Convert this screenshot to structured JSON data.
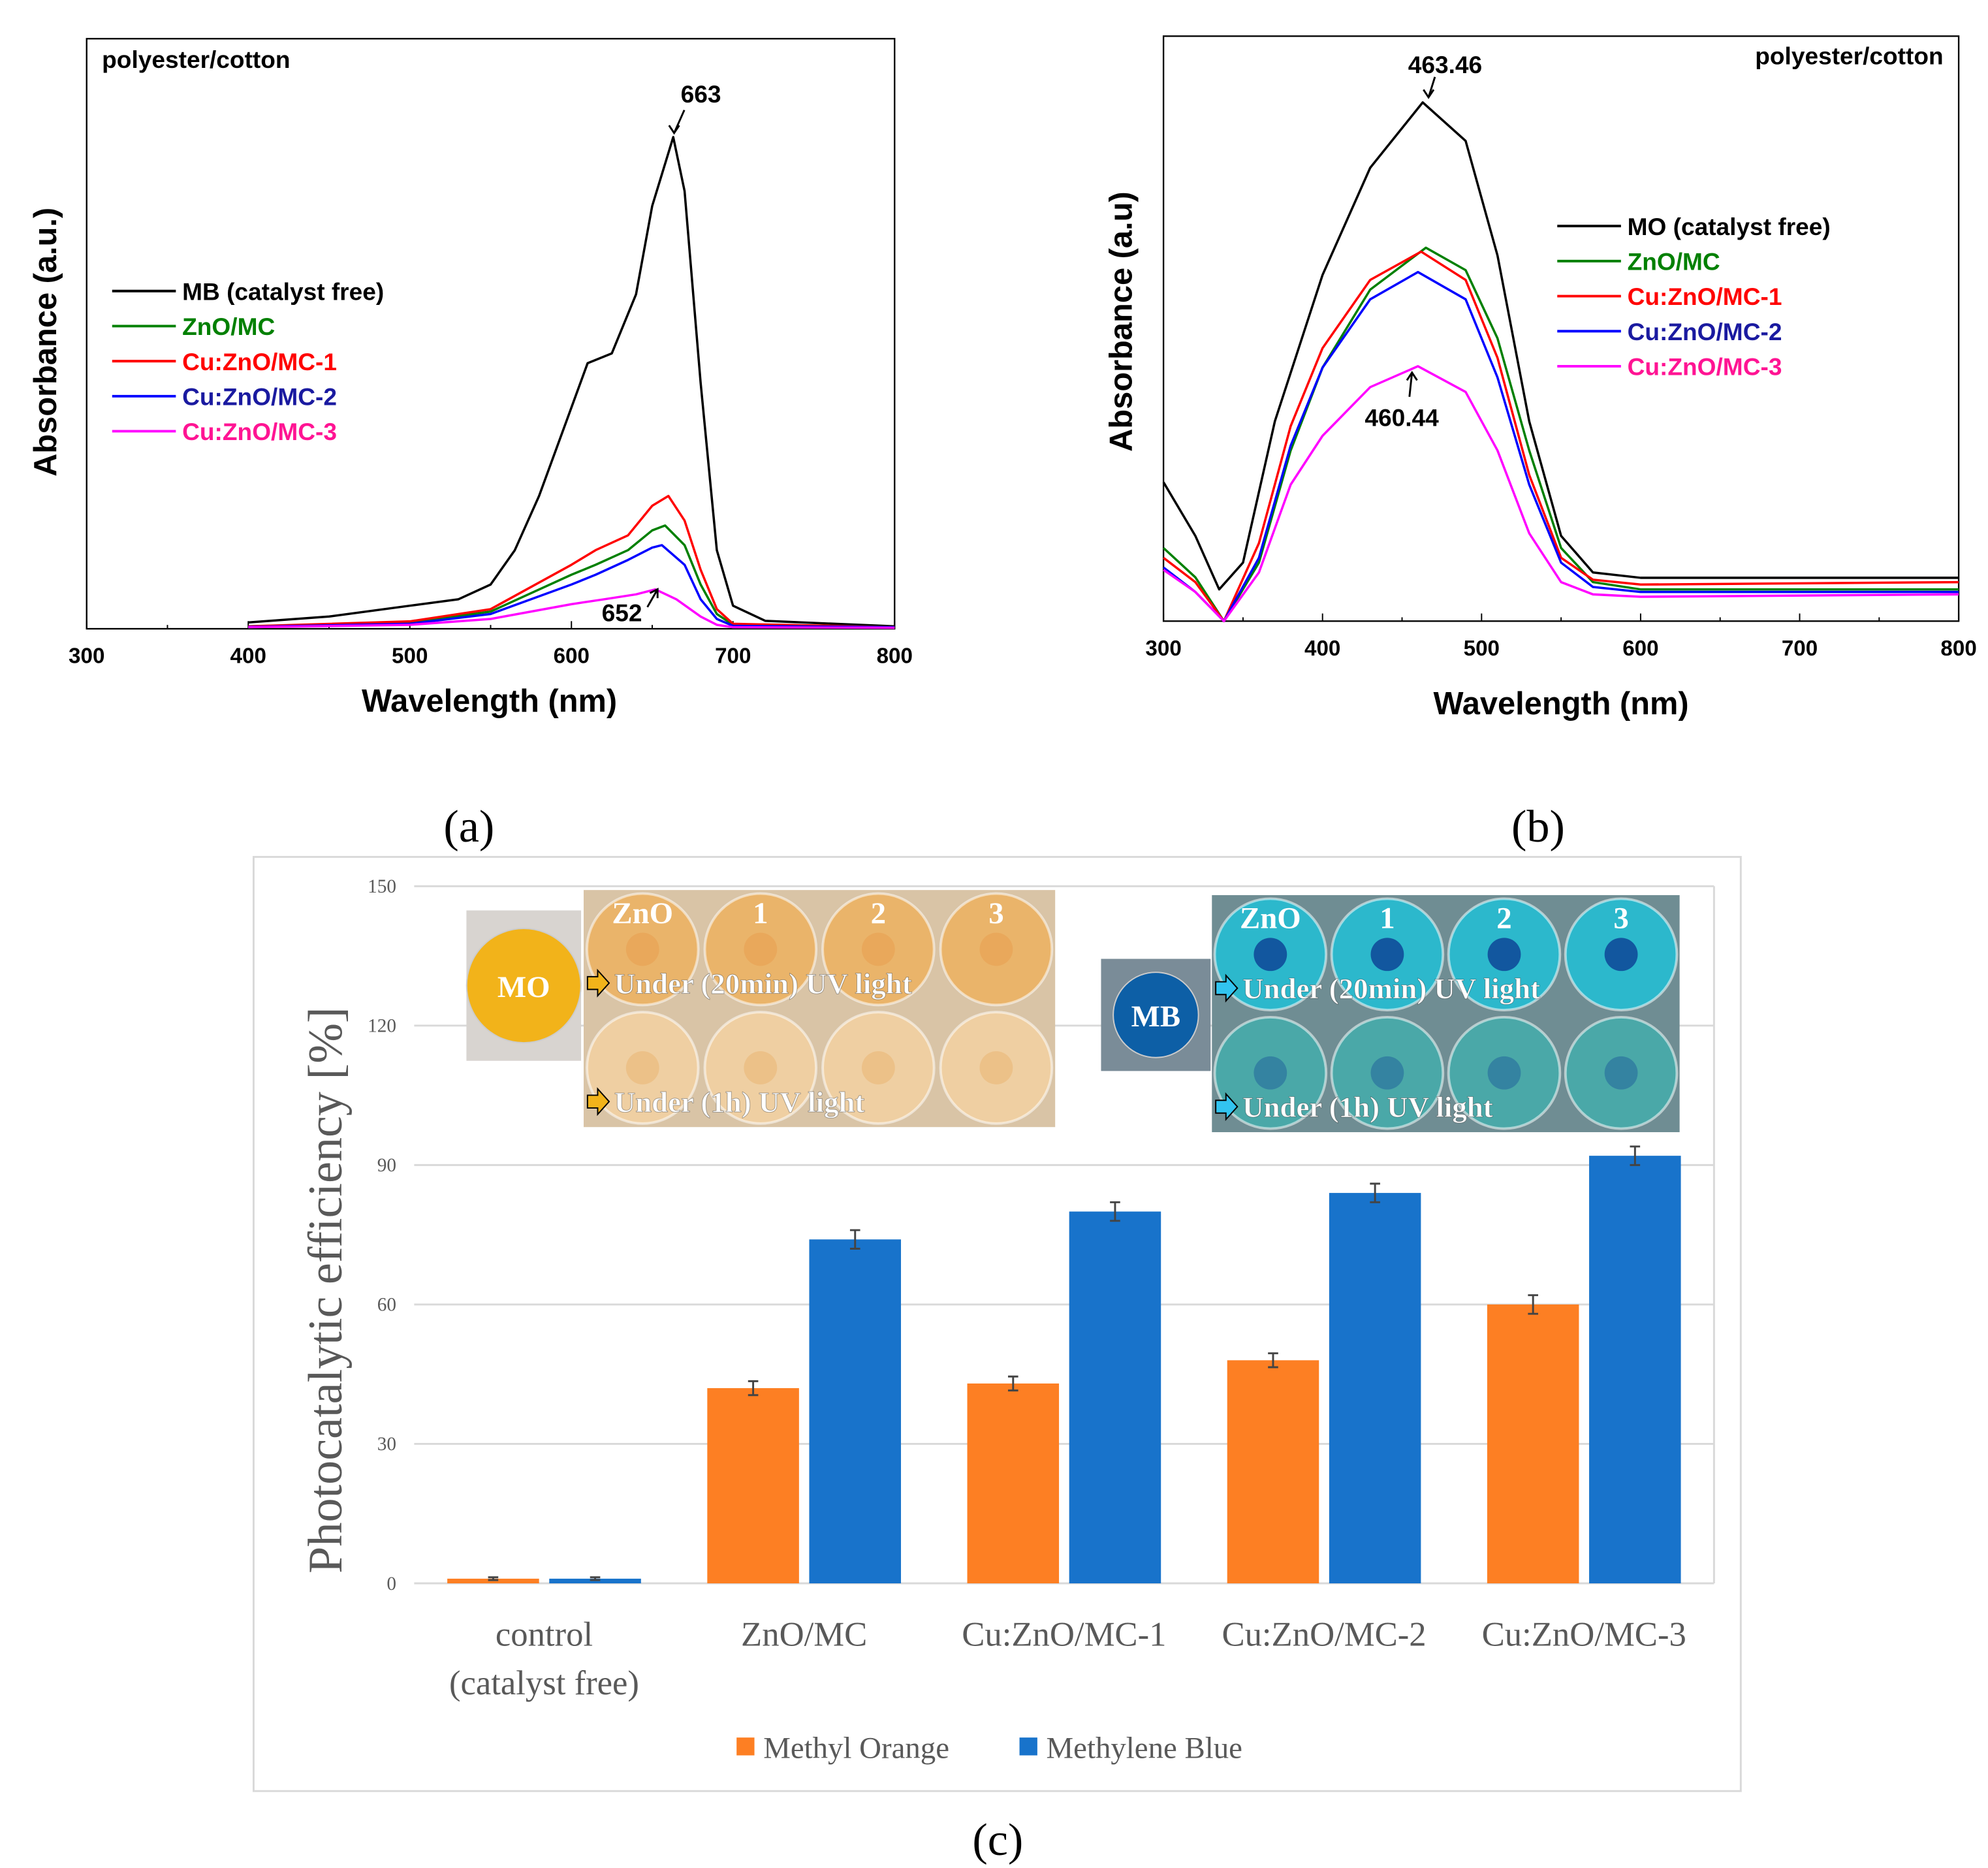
{
  "chart_data": [
    {
      "type": "line",
      "panel_label": "(a)",
      "annotation": "polyester/cotton",
      "xlabel": "Wavelength (nm)",
      "ylabel": "Absorbance (a.u.)",
      "xlim": [
        300,
        800
      ],
      "ylim": [
        0,
        1.2
      ],
      "x_ticks": [
        "300",
        "400",
        "500",
        "600",
        "700",
        "800"
      ],
      "y_ticks_shown": false,
      "legend_placement": "left",
      "peak_labels": [
        "663",
        "652"
      ],
      "series": [
        {
          "name": "MB (catalyst free)",
          "color": "#000000",
          "points": [
            [
              400,
              0.013
            ],
            [
              450,
              0.025
            ],
            [
              500,
              0.047
            ],
            [
              530,
              0.06
            ],
            [
              550,
              0.09
            ],
            [
              565,
              0.16
            ],
            [
              580,
              0.27
            ],
            [
              600,
              0.45
            ],
            [
              610,
              0.54
            ],
            [
              625,
              0.56
            ],
            [
              640,
              0.68
            ],
            [
              650,
              0.86
            ],
            [
              663,
              1.0
            ],
            [
              670,
              0.89
            ],
            [
              680,
              0.5
            ],
            [
              690,
              0.16
            ],
            [
              700,
              0.047
            ],
            [
              720,
              0.016
            ],
            [
              800,
              0.005
            ]
          ]
        },
        {
          "name": "ZnO/MC",
          "color": "#008000",
          "points": [
            [
              400,
              0.005
            ],
            [
              500,
              0.012
            ],
            [
              550,
              0.035
            ],
            [
              600,
              0.11
            ],
            [
              615,
              0.13
            ],
            [
              635,
              0.16
            ],
            [
              650,
              0.2
            ],
            [
              658,
              0.21
            ],
            [
              670,
              0.17
            ],
            [
              680,
              0.09
            ],
            [
              690,
              0.03
            ],
            [
              700,
              0.008
            ],
            [
              800,
              0.003
            ]
          ]
        },
        {
          "name": "Cu:ZnO/MC-1",
          "color": "#ff0000",
          "points": [
            [
              400,
              0.005
            ],
            [
              500,
              0.015
            ],
            [
              550,
              0.04
            ],
            [
              600,
              0.13
            ],
            [
              615,
              0.16
            ],
            [
              635,
              0.19
            ],
            [
              650,
              0.25
            ],
            [
              660,
              0.27
            ],
            [
              670,
              0.22
            ],
            [
              680,
              0.12
            ],
            [
              690,
              0.04
            ],
            [
              700,
              0.01
            ],
            [
              800,
              0.003
            ]
          ]
        },
        {
          "name": "Cu:ZnO/MC-2",
          "color": "#0000ff",
          "points": [
            [
              400,
              0.004
            ],
            [
              500,
              0.01
            ],
            [
              550,
              0.03
            ],
            [
              600,
              0.09
            ],
            [
              615,
              0.11
            ],
            [
              635,
              0.14
            ],
            [
              650,
              0.165
            ],
            [
              656,
              0.17
            ],
            [
              670,
              0.13
            ],
            [
              680,
              0.06
            ],
            [
              690,
              0.02
            ],
            [
              700,
              0.006
            ],
            [
              800,
              0.003
            ]
          ]
        },
        {
          "name": "Cu:ZnO/MC-3",
          "color": "#ff00ff",
          "points": [
            [
              400,
              0.003
            ],
            [
              500,
              0.008
            ],
            [
              550,
              0.02
            ],
            [
              600,
              0.05
            ],
            [
              620,
              0.06
            ],
            [
              640,
              0.07
            ],
            [
              652,
              0.08
            ],
            [
              665,
              0.06
            ],
            [
              680,
              0.025
            ],
            [
              690,
              0.008
            ],
            [
              700,
              0.003
            ],
            [
              800,
              0.002
            ]
          ]
        }
      ]
    },
    {
      "type": "line",
      "panel_label": "(b)",
      "annotation": "polyester/cotton",
      "xlabel": "Wavelength (nm)",
      "ylabel": "Absorbance (a.u)",
      "xlim": [
        300,
        800
      ],
      "ylim": [
        0,
        1.2
      ],
      "x_ticks": [
        "300",
        "400",
        "500",
        "600",
        "700",
        "800"
      ],
      "y_ticks_shown": false,
      "legend_placement": "right",
      "peak_labels": [
        "463.46",
        "460.44"
      ],
      "series": [
        {
          "name": "MO (catalyst free)",
          "color": "#000000",
          "points": [
            [
              300,
              0.285
            ],
            [
              320,
              0.175
            ],
            [
              335,
              0.065
            ],
            [
              350,
              0.12
            ],
            [
              370,
              0.41
            ],
            [
              400,
              0.71
            ],
            [
              430,
              0.93
            ],
            [
              463,
              1.064
            ],
            [
              490,
              0.985
            ],
            [
              510,
              0.75
            ],
            [
              530,
              0.41
            ],
            [
              550,
              0.175
            ],
            [
              570,
              0.1
            ],
            [
              600,
              0.089
            ],
            [
              800,
              0.089
            ]
          ]
        },
        {
          "name": "ZnO/MC",
          "color": "#008000",
          "points": [
            [
              300,
              0.15
            ],
            [
              320,
              0.09
            ],
            [
              338,
              0.0
            ],
            [
              360,
              0.12
            ],
            [
              380,
              0.35
            ],
            [
              400,
              0.52
            ],
            [
              430,
              0.68
            ],
            [
              465,
              0.766
            ],
            [
              490,
              0.72
            ],
            [
              510,
              0.58
            ],
            [
              530,
              0.35
            ],
            [
              550,
              0.15
            ],
            [
              570,
              0.08
            ],
            [
              600,
              0.065
            ],
            [
              800,
              0.065
            ]
          ]
        },
        {
          "name": "Cu:ZnO/MC-1",
          "color": "#ff0000",
          "points": [
            [
              300,
              0.13
            ],
            [
              320,
              0.08
            ],
            [
              338,
              0.0
            ],
            [
              360,
              0.16
            ],
            [
              380,
              0.4
            ],
            [
              400,
              0.56
            ],
            [
              430,
              0.7
            ],
            [
              462,
              0.758
            ],
            [
              490,
              0.7
            ],
            [
              510,
              0.54
            ],
            [
              530,
              0.3
            ],
            [
              550,
              0.13
            ],
            [
              570,
              0.085
            ],
            [
              600,
              0.075
            ],
            [
              800,
              0.08
            ]
          ]
        },
        {
          "name": "Cu:ZnO/MC-2",
          "color": "#0000ff",
          "points": [
            [
              300,
              0.11
            ],
            [
              320,
              0.06
            ],
            [
              338,
              0.0
            ],
            [
              360,
              0.13
            ],
            [
              380,
              0.36
            ],
            [
              400,
              0.52
            ],
            [
              430,
              0.66
            ],
            [
              460,
              0.716
            ],
            [
              490,
              0.66
            ],
            [
              510,
              0.5
            ],
            [
              530,
              0.28
            ],
            [
              550,
              0.12
            ],
            [
              570,
              0.07
            ],
            [
              600,
              0.06
            ],
            [
              800,
              0.06
            ]
          ]
        },
        {
          "name": "Cu:ZnO/MC-3",
          "color": "#ff00ff",
          "points": [
            [
              300,
              0.105
            ],
            [
              320,
              0.06
            ],
            [
              338,
              0.0
            ],
            [
              360,
              0.1
            ],
            [
              380,
              0.28
            ],
            [
              400,
              0.38
            ],
            [
              430,
              0.48
            ],
            [
              460,
              0.523
            ],
            [
              490,
              0.47
            ],
            [
              510,
              0.35
            ],
            [
              530,
              0.18
            ],
            [
              550,
              0.08
            ],
            [
              570,
              0.055
            ],
            [
              600,
              0.05
            ],
            [
              800,
              0.055
            ]
          ]
        }
      ]
    },
    {
      "type": "bar",
      "panel_label": "(c)",
      "ylabel": "Photocatalytic efficiency [%]",
      "xlabel": "",
      "ylim": [
        0,
        150
      ],
      "y_ticks": [
        "0",
        "30",
        "60",
        "90",
        "120",
        "150"
      ],
      "grid": true,
      "legend_placement": "bottom",
      "categories": [
        [
          "control",
          "(catalyst free)"
        ],
        [
          "ZnO/MC"
        ],
        [
          "Cu:ZnO/MC-1"
        ],
        [
          "Cu:ZnO/MC-2"
        ],
        [
          "Cu:ZnO/MC-3"
        ]
      ],
      "series": [
        {
          "name": "Methyl Orange",
          "color": "#fd7f23",
          "values": [
            1,
            42,
            43,
            48,
            60
          ],
          "errors": [
            0.3,
            1.5,
            1.5,
            1.5,
            2
          ]
        },
        {
          "name": "Methylene Blue",
          "color": "#1873cb",
          "values": [
            1,
            74,
            80,
            84,
            92
          ],
          "errors": [
            0.3,
            2,
            2,
            2,
            2
          ]
        }
      ],
      "insets": {
        "mo": {
          "dye_label": "MO",
          "dish_labels": [
            "ZnO",
            "1",
            "2",
            "3"
          ],
          "row1": "Under (20min) UV light",
          "row2": "Under (1h) UV light",
          "dye_color": "#f2b31a",
          "row1_color": "#eab46a",
          "row2_color": "#efcfa2"
        },
        "mb": {
          "dye_label": "MB",
          "dish_labels": [
            "ZnO",
            "1",
            "2",
            "3"
          ],
          "row1": "Under (20min) UV light",
          "row2": "Under (1h) UV light",
          "dye_color": "#0d5fa6",
          "row1_color": "#2cb8cc",
          "row2_color": "#4aa8a8"
        }
      }
    }
  ]
}
